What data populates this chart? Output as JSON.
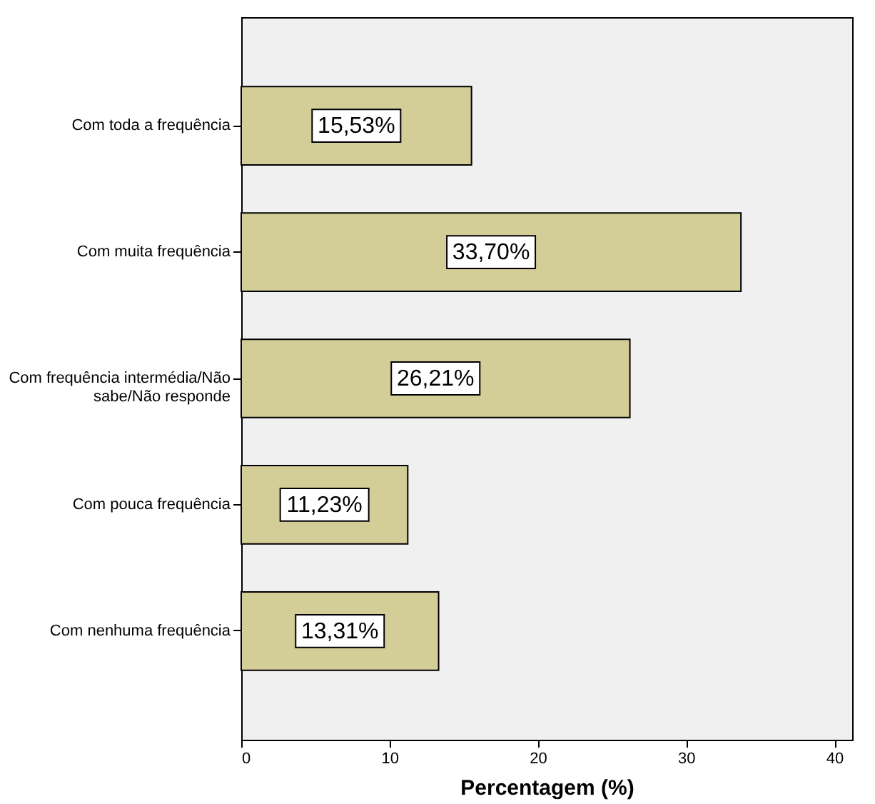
{
  "chart_data": {
    "type": "bar",
    "orientation": "horizontal",
    "xlabel": "Percentagem (%)",
    "categories": [
      "Com toda a frequência",
      "Com muita frequência",
      "Com frequência intermédia/Não\nsabe/Não responde",
      "Com pouca frequência",
      "Com nenhuma frequência"
    ],
    "values": [
      15.53,
      33.7,
      26.21,
      11.23,
      13.31
    ],
    "value_labels": [
      "15,53%",
      "33,70%",
      "26,21%",
      "11,23%",
      "13,31%"
    ],
    "color": "#d3cd98",
    "xlim": [
      0,
      41.2
    ],
    "xticks": [
      0,
      10,
      20,
      30,
      40
    ],
    "grid": false
  }
}
